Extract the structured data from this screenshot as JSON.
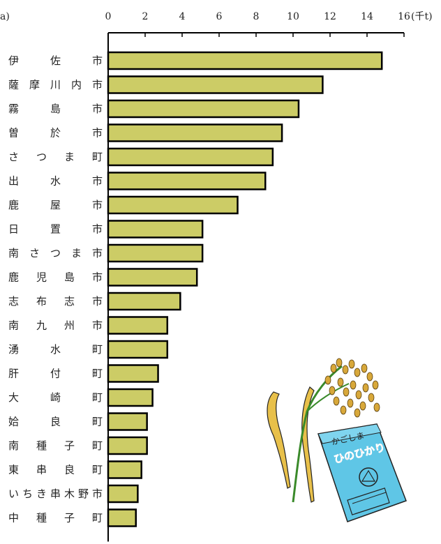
{
  "chart_data": {
    "type": "bar",
    "orientation": "horizontal",
    "panel_tag": "a)",
    "unit_label": "(千t)",
    "xlim": [
      0,
      16
    ],
    "ticks": [
      0,
      2,
      4,
      6,
      8,
      10,
      12,
      14,
      16
    ],
    "grid": false,
    "bar_color": "#cccc66",
    "categories": [
      "伊佐市",
      "薩摩川内市",
      "霧島市",
      "曽於市",
      "さつま町",
      "出水市",
      "鹿屋市",
      "日置市",
      "南さつま市",
      "鹿児島市",
      "志布志市",
      "南九州市",
      "湧水町",
      "肝付町",
      "大崎町",
      "姶良町",
      "南種子町",
      "東串良町",
      "いちき串木野市",
      "中種子町"
    ],
    "values": [
      14.8,
      11.6,
      10.3,
      9.4,
      8.9,
      8.5,
      7.0,
      5.1,
      5.1,
      4.8,
      3.9,
      3.2,
      3.2,
      2.7,
      2.4,
      2.1,
      2.1,
      1.8,
      1.6,
      1.5
    ]
  },
  "illustration": {
    "bag_text_1": "かごしま",
    "bag_text_2": "ひのひかり"
  }
}
